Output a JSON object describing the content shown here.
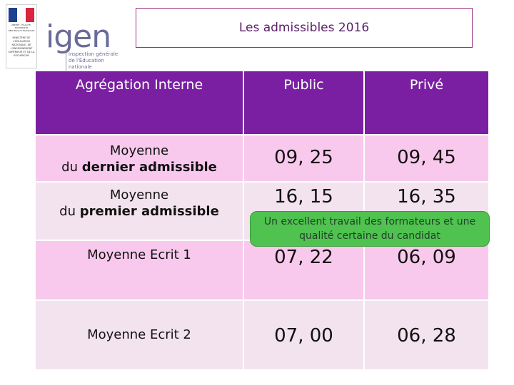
{
  "colors": {
    "header_bg": "#7a1fa2",
    "row_pink": "#f8c9ec",
    "row_light": "#f3e3ee",
    "title_text": "#5b1f6a",
    "title_border": "#9b2f7f",
    "callout_bg": "#4fc24f"
  },
  "logo": {
    "republique_text": "LIBERTÉ · ÉGALITÉ · FRATERNITÉ RÉPUBLIQUE FRANÇAISE",
    "ministere_text": "MINISTÈRE DE L'ÉDUCATION NATIONALE, DE L'ENSEIGNEMENT SUPÉRIEUR ET DE LA RECHERCHE",
    "igen": "igen",
    "igen_subtitle": "inspection générale de l'Éducation nationale",
    "icon": "marianne-flag-icon"
  },
  "title": "Les admissibles 2016",
  "table": {
    "headers": [
      "Agrégation Interne",
      "Public",
      "Privé"
    ],
    "rows": [
      {
        "label_line1": "Moyenne",
        "label_line2_prefix": "du ",
        "label_line2_bold": "dernier admissible",
        "public": "09, 25",
        "prive": "09, 45"
      },
      {
        "label_line1": "Moyenne",
        "label_line2_prefix": "du ",
        "label_line2_bold": "premier admissible",
        "public": "16, 15",
        "prive": "16, 35"
      },
      {
        "label": "Moyenne Ecrit 1",
        "public": "07, 22",
        "prive": "06, 09"
      },
      {
        "label": "Moyenne Ecrit 2",
        "public": "07, 00",
        "prive": "06, 28"
      }
    ]
  },
  "callout": "Un excellent travail des formateurs et une qualité certaine du candidat"
}
